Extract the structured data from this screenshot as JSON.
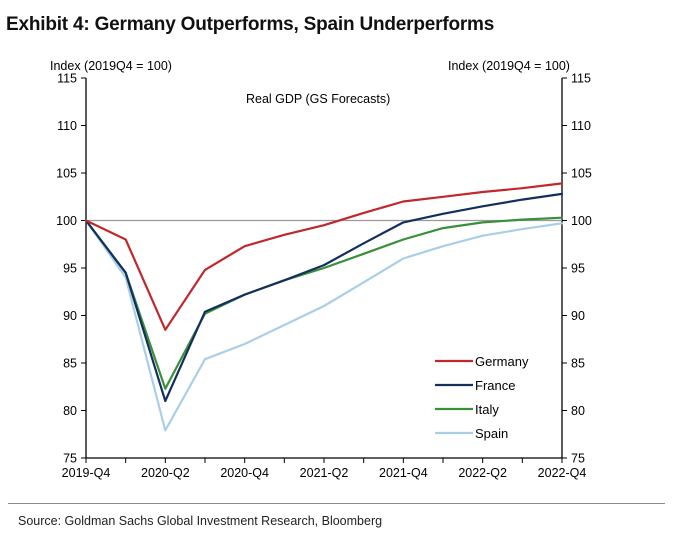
{
  "exhibit_title": "Exhibit 4: Germany Outperforms, Spain Underperforms",
  "source_note": "Source: Goldman Sachs Global Investment Research, Bloomberg",
  "chart_data": {
    "type": "line",
    "title": "Real GDP (GS Forecasts)",
    "ylabel_left": "Index (2019Q4 = 100)",
    "ylabel_right": "Index (2019Q4 = 100)",
    "ylim": [
      75,
      115
    ],
    "yticks": [
      75,
      80,
      85,
      90,
      95,
      100,
      105,
      110,
      115
    ],
    "reference_line": 100,
    "x": [
      "2019-Q4",
      "2020-Q1",
      "2020-Q2",
      "2020-Q3",
      "2020-Q4",
      "2021-Q1",
      "2021-Q2",
      "2021-Q3",
      "2021-Q4",
      "2022-Q1",
      "2022-Q2",
      "2022-Q3",
      "2022-Q4"
    ],
    "xtick_labels": [
      "2019-Q4",
      "2020-Q2",
      "2020-Q4",
      "2021-Q2",
      "2021-Q4",
      "2022-Q2",
      "2022-Q4"
    ],
    "legend_position": "bottom-right",
    "grid": false,
    "series": [
      {
        "name": "Germany",
        "color": "#c0282d",
        "values": [
          100,
          98.0,
          88.5,
          94.8,
          97.3,
          98.5,
          99.5,
          100.8,
          102.0,
          102.5,
          103.0,
          103.4,
          103.9
        ]
      },
      {
        "name": "France",
        "color": "#132f5c",
        "values": [
          100,
          94.5,
          81.0,
          90.4,
          92.2,
          93.7,
          95.3,
          97.6,
          99.8,
          100.7,
          101.5,
          102.2,
          102.8
        ]
      },
      {
        "name": "Italy",
        "color": "#3a8f3a",
        "values": [
          100,
          94.5,
          82.3,
          90.2,
          92.2,
          93.7,
          95.0,
          96.5,
          98.0,
          99.2,
          99.8,
          100.1,
          100.3
        ]
      },
      {
        "name": "Spain",
        "color": "#a9cfe8",
        "values": [
          100,
          94.0,
          77.9,
          85.4,
          87.0,
          89.0,
          91.0,
          93.5,
          96.0,
          97.3,
          98.4,
          99.1,
          99.7
        ]
      }
    ]
  }
}
